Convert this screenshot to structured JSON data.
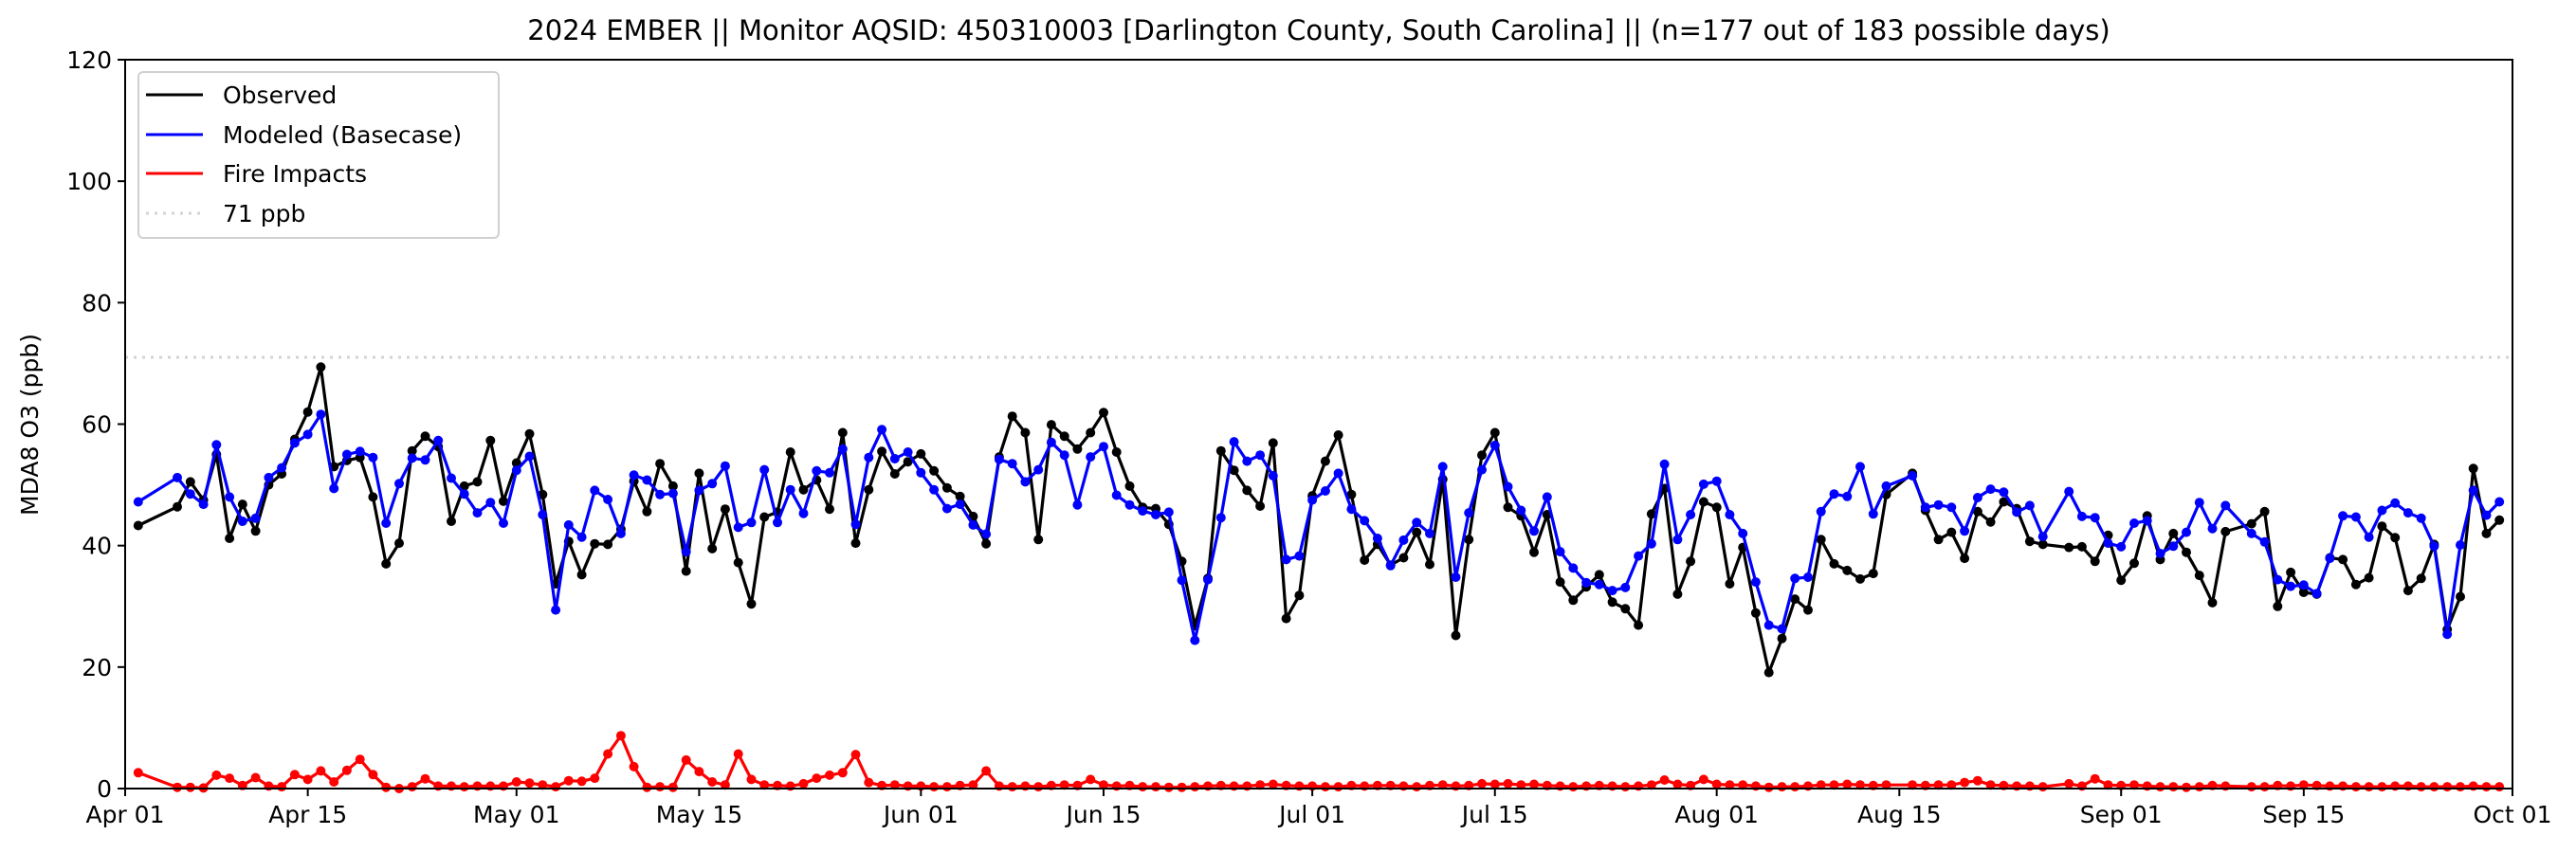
{
  "chart_data": {
    "type": "line",
    "title": "2024 EMBER || Monitor AQSID: 450310003 [Darlington County, South Carolina] || (n=177 out of 183 possible days)",
    "xlabel": "",
    "ylabel": "MDA8 O3 (ppb)",
    "x_start": "2024-04-01",
    "x_end": "2024-10-01",
    "x_tick_labels": [
      "Apr 01",
      "Apr 15",
      "May 01",
      "May 15",
      "Jun 01",
      "Jun 15",
      "Jul 01",
      "Jul 15",
      "Aug 01",
      "Aug 15",
      "Sep 01",
      "Sep 15",
      "Oct 01"
    ],
    "x_tick_days": [
      0,
      14,
      30,
      44,
      61,
      75,
      91,
      105,
      122,
      136,
      153,
      167,
      183
    ],
    "ylim": [
      0,
      120
    ],
    "y_ticks": [
      0,
      20,
      40,
      60,
      80,
      100,
      120
    ],
    "grid": false,
    "legend_position": "top-left",
    "reference_line": {
      "label": "71 ppb",
      "value": 71,
      "color": "#d3d3d3"
    },
    "series": [
      {
        "name": "Observed",
        "color": "#000000",
        "values": [
          null,
          43.3,
          null,
          null,
          46.4,
          50.5,
          47.5,
          55,
          41.2,
          46.8,
          42.4,
          50,
          51.8,
          57.5,
          62,
          69.4,
          53,
          54,
          54.5,
          48,
          37,
          40.4,
          55.6,
          58,
          56.3,
          44,
          49.8,
          50.5,
          57.3,
          47.3,
          53.6,
          58.4,
          48.4,
          33.7,
          40.7,
          35.2,
          40.3,
          40.2,
          42.7,
          50.6,
          45.6,
          53.5,
          49.8,
          35.8,
          51.9,
          39.5,
          46,
          37.2,
          30.4,
          44.7,
          45.5,
          55.4,
          49.2,
          50.8,
          46,
          58.6,
          40.4,
          49.2,
          55.5,
          51.8,
          53.8,
          55.1,
          52.3,
          49.5,
          48.1,
          44.8,
          40.3,
          54.6,
          61.3,
          58.6,
          41.0,
          59.9,
          58.0,
          55.9,
          58.6,
          61.9,
          55.4,
          49.8,
          46.3,
          46.1,
          43.5,
          37.4,
          26.8,
          34.6,
          55.6,
          52.4,
          49.1,
          46.5,
          56.9,
          28.0,
          31.8,
          48.2,
          53.9,
          58.2,
          48.4,
          37.6,
          40.2,
          36.8,
          38.0,
          42.2,
          36.9,
          50.9,
          25.2,
          41.0,
          54.9,
          58.6,
          46.3,
          44.9,
          38.9,
          45.1,
          34.0,
          31.0,
          33.2,
          35.2,
          30.7,
          29.6,
          26.9,
          45.2,
          49.4,
          32.0,
          37.4,
          47.2,
          46.3,
          33.7,
          39.7,
          28.9,
          19.1,
          24.7,
          31.2,
          29.4,
          41.0,
          37.0,
          35.9,
          34.5,
          35.4,
          48.4,
          null,
          51.9,
          45.8,
          41.0,
          42.2,
          37.9,
          45.6,
          43.9,
          47.2,
          46.1,
          40.7,
          40.2,
          null,
          39.7,
          39.8,
          37.4,
          41.7,
          34.3,
          37.1,
          44.9,
          37.7,
          42.0,
          38.9,
          35.1,
          30.6,
          42.3,
          null,
          43.6,
          45.6,
          30.0,
          35.6,
          32.3,
          32.0,
          38.0,
          37.7,
          33.6,
          34.7,
          43.2,
          41.3,
          32.6,
          34.6,
          40.2,
          26.2,
          31.6,
          52.7,
          42.0,
          44.2
        ]
      },
      {
        "name": "Modeled (Basecase)",
        "color": "#0000ff",
        "values": [
          null,
          47.2,
          null,
          null,
          51.2,
          48.5,
          46.8,
          56.6,
          48,
          44,
          44.5,
          51.2,
          52.8,
          56.9,
          58.3,
          61.6,
          49.4,
          55,
          55.5,
          54.5,
          43.7,
          50.2,
          54.4,
          54.1,
          57.3,
          51.1,
          48.5,
          45.4,
          47.1,
          43.7,
          52.4,
          54.7,
          45.1,
          29.4,
          43.4,
          41.4,
          49.1,
          47.6,
          42,
          51.6,
          50.8,
          48.4,
          48.6,
          39,
          49.1,
          50.2,
          53.1,
          43,
          43.8,
          52.5,
          43.8,
          49.2,
          45.3,
          52.3,
          52,
          55.9,
          43.5,
          54.5,
          59.1,
          54.3,
          55.4,
          52.0,
          49.2,
          46.1,
          46.8,
          43.4,
          41.9,
          54.2,
          53.5,
          50.5,
          52.5,
          57.0,
          54.9,
          46.7,
          54.6,
          56.3,
          48.3,
          46.7,
          45.7,
          45.1,
          45.5,
          34.3,
          24.4,
          34.4,
          44.6,
          57.1,
          53.9,
          54.9,
          51.5,
          37.7,
          38.3,
          47.5,
          49.0,
          51.9,
          46.0,
          44.1,
          41.2,
          36.7,
          40.9,
          43.8,
          42.0,
          53.0,
          34.8,
          45.4,
          52.5,
          56.5,
          49.7,
          45.8,
          42.4,
          48.0,
          39.0,
          36.3,
          33.9,
          33.6,
          32.6,
          33.1,
          38.3,
          40.3,
          53.4,
          41.0,
          45.1,
          50.1,
          50.6,
          45.1,
          42.0,
          34.0,
          26.9,
          26.3,
          34.6,
          34.8,
          45.6,
          48.5,
          48.1,
          53.0,
          45.2,
          49.8,
          null,
          51.5,
          46.3,
          46.7,
          46.3,
          42.4,
          47.9,
          49.3,
          48.8,
          45.5,
          46.6,
          41.5,
          null,
          48.9,
          44.8,
          44.6,
          40.4,
          39.8,
          43.7,
          44.1,
          38.7,
          39.9,
          42.2,
          47.1,
          42.8,
          46.6,
          null,
          42.0,
          40.6,
          34.4,
          33.3,
          33.5,
          32.1,
          37.9,
          44.9,
          44.7,
          41.4,
          45.8,
          47.0,
          45.4,
          44.5,
          39.9,
          25.4,
          40.1,
          49.1,
          45.0,
          47.2
        ]
      },
      {
        "name": "Fire Impacts",
        "color": "#ff0000",
        "values": [
          null,
          2.6,
          null,
          null,
          0.2,
          0.2,
          0.1,
          2.2,
          1.7,
          0.5,
          1.8,
          0.4,
          0.3,
          2.3,
          1.5,
          2.9,
          1.1,
          3.0,
          4.8,
          2.3,
          0.2,
          0.0,
          0.3,
          1.6,
          0.4,
          0.4,
          0.3,
          0.4,
          0.4,
          0.4,
          1.1,
          0.9,
          0.6,
          0.3,
          1.3,
          1.2,
          1.7,
          5.7,
          8.7,
          3.6,
          0.2,
          0.3,
          0.2,
          4.7,
          2.8,
          1.1,
          0.6,
          5.7,
          1.5,
          0.6,
          0.5,
          0.4,
          0.8,
          1.7,
          2.2,
          2.6,
          5.6,
          1.0,
          0.5,
          0.6,
          0.4,
          0.4,
          0.3,
          0.3,
          0.5,
          0.6,
          2.9,
          0.4,
          0.3,
          0.4,
          0.3,
          0.5,
          0.6,
          0.5,
          1.5,
          0.6,
          0.4,
          0.5,
          0.3,
          0.3,
          0.2,
          0.2,
          0.3,
          0.4,
          0.5,
          0.4,
          0.4,
          0.6,
          0.7,
          0.5,
          0.4,
          0.4,
          0.3,
          0.3,
          0.5,
          0.4,
          0.5,
          0.5,
          0.4,
          0.3,
          0.5,
          0.6,
          0.4,
          0.5,
          0.8,
          0.7,
          0.8,
          0.6,
          0.7,
          0.5,
          0.4,
          0.3,
          0.4,
          0.5,
          0.4,
          0.3,
          0.4,
          0.6,
          1.4,
          0.7,
          0.5,
          1.5,
          0.7,
          0.6,
          0.6,
          0.4,
          0.2,
          0.3,
          0.3,
          0.4,
          0.6,
          0.6,
          0.7,
          0.6,
          0.5,
          0.6,
          null,
          0.6,
          0.5,
          0.6,
          0.6,
          1.0,
          1.3,
          0.6,
          0.5,
          0.4,
          0.4,
          0.3,
          null,
          0.8,
          0.4,
          1.6,
          0.6,
          0.5,
          0.6,
          0.4,
          0.3,
          0.3,
          0.2,
          0.3,
          0.5,
          0.4,
          null,
          0.3,
          0.3,
          0.5,
          0.4,
          0.6,
          0.5,
          0.4,
          0.4,
          0.3,
          0.3,
          0.3,
          0.4,
          0.4,
          0.3,
          0.3,
          0.3,
          0.3,
          0.4,
          0.3,
          0.3
        ]
      }
    ]
  }
}
